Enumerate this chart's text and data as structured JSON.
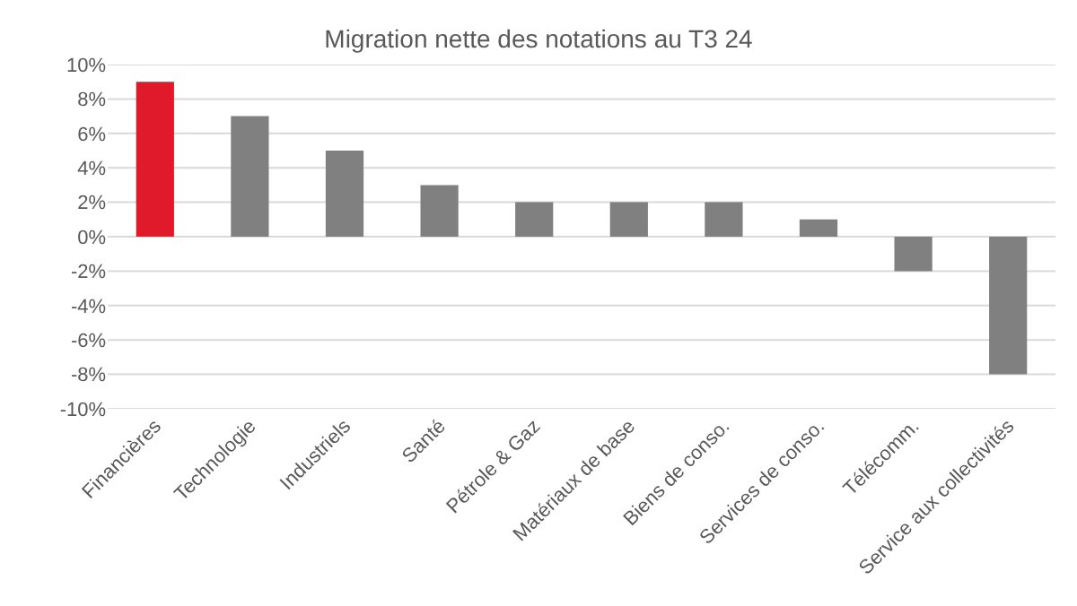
{
  "chart_data": {
    "type": "bar",
    "title": "Migration nette des notations au T3 24",
    "categories": [
      "Financières",
      "Technologie",
      "Industriels",
      "Santé",
      "Pétrole & Gaz",
      "Matériaux de base",
      "Biens de conso.",
      "Services de conso.",
      "Télécomm.",
      "Service aux collectivités"
    ],
    "values": [
      9,
      7,
      5,
      3,
      2,
      2,
      2,
      1,
      -2,
      -8
    ],
    "colors": [
      "#e01a2b",
      "#808080",
      "#808080",
      "#808080",
      "#808080",
      "#808080",
      "#808080",
      "#808080",
      "#808080",
      "#808080"
    ],
    "ylim": [
      -10,
      10
    ],
    "yticks": [
      {
        "value": -10,
        "label": "-10%"
      },
      {
        "value": -8,
        "label": "-8%"
      },
      {
        "value": -6,
        "label": "-6%"
      },
      {
        "value": -4,
        "label": "-4%"
      },
      {
        "value": -2,
        "label": "-2%"
      },
      {
        "value": 0,
        "label": "0%"
      },
      {
        "value": 2,
        "label": "2%"
      },
      {
        "value": 4,
        "label": "4%"
      },
      {
        "value": 6,
        "label": "6%"
      },
      {
        "value": 8,
        "label": "8%"
      },
      {
        "value": 10,
        "label": "10%"
      }
    ],
    "grid": "y"
  }
}
